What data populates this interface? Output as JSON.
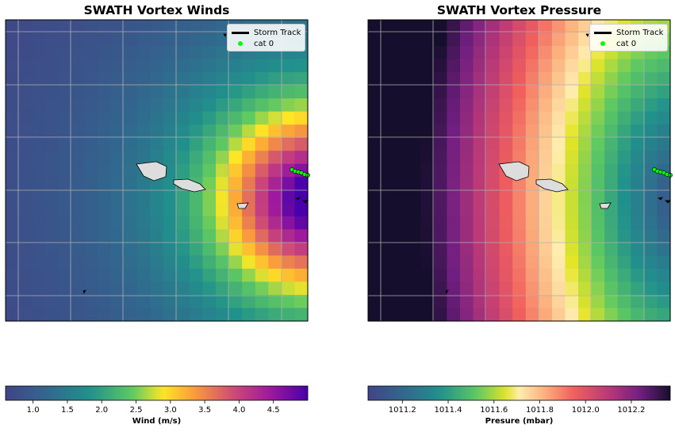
{
  "colors": {
    "track": "#000000",
    "cat0_marker": "#00ff00",
    "island_fill": "#dddddd",
    "grid": "#b0b0b0"
  },
  "legend": {
    "track_label": "Storm Track",
    "cat_label": "cat 0"
  },
  "chart_data": [
    {
      "type": "heatmap",
      "title": "SWATH Vortex Winds",
      "colorbar_label": "Wind (m/s)",
      "colormap": "viridis-to-plasma (blue, teal, green, yellow, orange, magenta, purple)",
      "value_range": [
        0.6,
        5.0
      ],
      "colorbar_ticks": [
        "1.0",
        "1.5",
        "2.0",
        "2.5",
        "3.0",
        "3.5",
        "4.0",
        "4.5"
      ],
      "colorbar_tick_values": [
        1.0,
        1.5,
        2.0,
        2.5,
        3.0,
        3.5,
        4.0,
        4.5
      ],
      "grid": true,
      "legend_position": "upper right",
      "storm_center_relative": "east edge, slightly below middle"
    },
    {
      "type": "heatmap",
      "title": "SWATH Vortex Pressure",
      "colorbar_label": "Presure (mbar)",
      "colormap": "viridis-to-inverted-magma (blue, teal, yellow, cream, salmon, magenta, dark purple)",
      "value_range": [
        1011.05,
        1012.37
      ],
      "colorbar_ticks": [
        "1011.2",
        "1011.4",
        "1011.6",
        "1011.8",
        "1012.0",
        "1012.2"
      ],
      "colorbar_tick_values": [
        1011.2,
        1011.4,
        1011.6,
        1011.8,
        1012.0,
        1012.2
      ],
      "grid": true,
      "legend_position": "upper right",
      "storm_center_relative": "east edge, slightly below middle"
    }
  ]
}
